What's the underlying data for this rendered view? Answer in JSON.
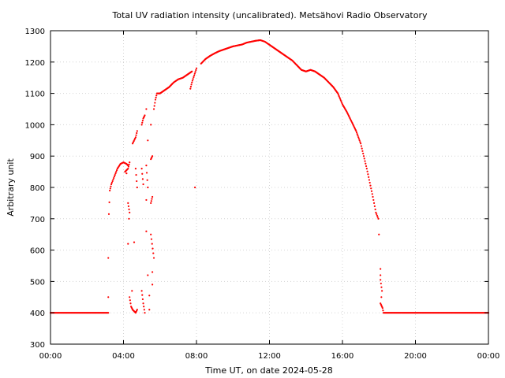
{
  "chart_data": {
    "type": "scatter",
    "title": "Total UV radiation intensity (uncalibrated). Metsähovi Radio Observatory",
    "xlabel": "Time UT, on date 2024-05-28",
    "ylabel": "Arbitrary unit",
    "xlim": [
      "00:00",
      "24:00"
    ],
    "ylim": [
      300,
      1300
    ],
    "xticks": [
      "00:00",
      "04:00",
      "08:00",
      "12:00",
      "16:00",
      "20:00",
      "00:00"
    ],
    "yticks": [
      300,
      400,
      500,
      600,
      700,
      800,
      900,
      1000,
      1100,
      1200,
      1300
    ],
    "grid": true,
    "legend": "none",
    "marker_color": "#ff0000",
    "series": [
      {
        "points": [
          [
            "00:00",
            400
          ],
          [
            "03:10",
            400
          ],
          [
            "03:10",
            450
          ],
          [
            "03:10",
            575
          ],
          [
            "03:12",
            715
          ],
          [
            "03:15",
            790
          ],
          [
            "03:20",
            810
          ],
          [
            "03:30",
            835
          ],
          [
            "03:40",
            860
          ],
          [
            "03:50",
            875
          ],
          [
            "04:00",
            880
          ],
          [
            "04:10",
            875
          ],
          [
            "04:15",
            870
          ],
          [
            "04:05",
            850
          ],
          [
            "04:15",
            860
          ],
          [
            "04:20",
            880
          ],
          [
            "04:10",
            845
          ],
          [
            "04:15",
            750
          ],
          [
            "04:20",
            720
          ],
          [
            "04:18",
            700
          ],
          [
            "04:15",
            620
          ],
          [
            "04:20",
            450
          ],
          [
            "04:25",
            420
          ],
          [
            "04:30",
            410
          ],
          [
            "04:35",
            405
          ],
          [
            "04:40",
            400
          ],
          [
            "04:45",
            410
          ],
          [
            "04:28",
            470
          ],
          [
            "04:35",
            625
          ],
          [
            "04:30",
            940
          ],
          [
            "04:40",
            960
          ],
          [
            "04:45",
            980
          ],
          [
            "04:40",
            860
          ],
          [
            "04:45",
            800
          ],
          [
            "05:00",
            1000
          ],
          [
            "05:05",
            1020
          ],
          [
            "05:10",
            1030
          ],
          [
            "05:00",
            860
          ],
          [
            "05:05",
            810
          ],
          [
            "05:00",
            470
          ],
          [
            "05:05",
            430
          ],
          [
            "05:10",
            400
          ],
          [
            "05:15",
            1050
          ],
          [
            "05:20",
            950
          ],
          [
            "05:15",
            870
          ],
          [
            "05:20",
            800
          ],
          [
            "05:15",
            760
          ],
          [
            "05:15",
            660
          ],
          [
            "05:20",
            520
          ],
          [
            "05:25",
            410
          ],
          [
            "05:30",
            1000
          ],
          [
            "05:30",
            890
          ],
          [
            "05:35",
            900
          ],
          [
            "05:30",
            750
          ],
          [
            "05:35",
            770
          ],
          [
            "05:30",
            650
          ],
          [
            "05:40",
            575
          ],
          [
            "05:35",
            530
          ],
          [
            "05:35",
            490
          ],
          [
            "05:25",
            455
          ],
          [
            "05:40",
            1050
          ],
          [
            "05:45",
            1080
          ],
          [
            "05:50",
            1100
          ],
          [
            "06:00",
            1100
          ],
          [
            "06:15",
            1110
          ],
          [
            "06:30",
            1120
          ],
          [
            "06:45",
            1135
          ],
          [
            "07:00",
            1145
          ],
          [
            "07:15",
            1150
          ],
          [
            "07:30",
            1160
          ],
          [
            "07:45",
            1170
          ],
          [
            "07:40",
            1115
          ],
          [
            "07:45",
            1135
          ],
          [
            "08:00",
            1180
          ],
          [
            "07:55",
            800
          ],
          [
            "08:15",
            1195
          ],
          [
            "08:30",
            1210
          ],
          [
            "08:45",
            1220
          ],
          [
            "09:00",
            1228
          ],
          [
            "09:15",
            1235
          ],
          [
            "09:30",
            1240
          ],
          [
            "09:45",
            1245
          ],
          [
            "10:00",
            1250
          ],
          [
            "10:15",
            1253
          ],
          [
            "10:30",
            1256
          ],
          [
            "10:45",
            1262
          ],
          [
            "11:00",
            1265
          ],
          [
            "11:15",
            1268
          ],
          [
            "11:30",
            1270
          ],
          [
            "11:45",
            1265
          ],
          [
            "12:00",
            1255
          ],
          [
            "12:15",
            1245
          ],
          [
            "12:30",
            1235
          ],
          [
            "12:45",
            1225
          ],
          [
            "13:00",
            1215
          ],
          [
            "13:15",
            1205
          ],
          [
            "13:30",
            1190
          ],
          [
            "13:45",
            1175
          ],
          [
            "14:00",
            1170
          ],
          [
            "14:15",
            1175
          ],
          [
            "14:30",
            1170
          ],
          [
            "14:45",
            1160
          ],
          [
            "15:00",
            1150
          ],
          [
            "15:15",
            1135
          ],
          [
            "15:30",
            1120
          ],
          [
            "15:45",
            1100
          ],
          [
            "16:00",
            1065
          ],
          [
            "16:15",
            1040
          ],
          [
            "16:30",
            1010
          ],
          [
            "16:45",
            980
          ],
          [
            "17:00",
            940
          ],
          [
            "17:10",
            900
          ],
          [
            "17:20",
            860
          ],
          [
            "17:30",
            815
          ],
          [
            "17:40",
            770
          ],
          [
            "17:50",
            720
          ],
          [
            "17:58",
            700
          ],
          [
            "18:00",
            650
          ],
          [
            "18:05",
            540
          ],
          [
            "18:05",
            520
          ],
          [
            "18:05",
            505
          ],
          [
            "18:10",
            470
          ],
          [
            "18:08",
            450
          ],
          [
            "18:05",
            430
          ],
          [
            "18:12",
            415
          ],
          [
            "18:15",
            400
          ],
          [
            "24:00",
            400
          ]
        ]
      }
    ]
  }
}
